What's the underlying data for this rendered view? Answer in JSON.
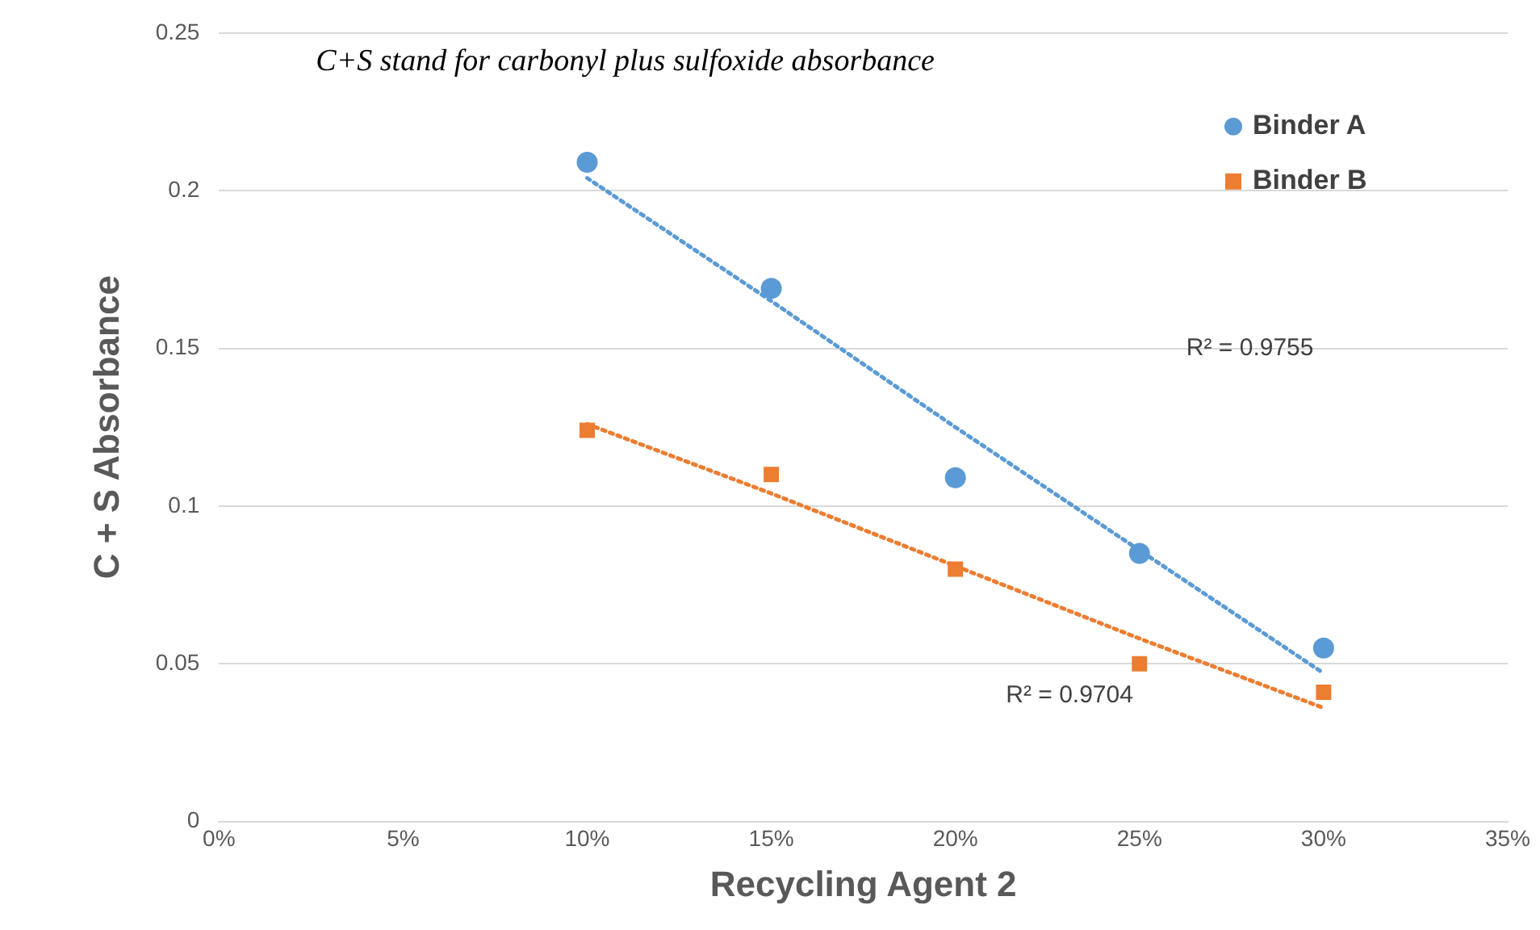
{
  "chart_data": {
    "type": "scatter",
    "xlabel": "Recycling Agent 2",
    "ylabel": "C + S Absorbance",
    "xlim": [
      0,
      35
    ],
    "xticks": [
      {
        "value": 0,
        "label": "0%"
      },
      {
        "value": 5,
        "label": "5%"
      },
      {
        "value": 10,
        "label": "10%"
      },
      {
        "value": 15,
        "label": "15%"
      },
      {
        "value": 20,
        "label": "20%"
      },
      {
        "value": 25,
        "label": "25%"
      },
      {
        "value": 30,
        "label": "30%"
      },
      {
        "value": 35,
        "label": "35%"
      }
    ],
    "ylim": [
      0,
      0.25
    ],
    "yticks": [
      0,
      0.05,
      0.1,
      0.15,
      0.2,
      0.25
    ],
    "grid": "y",
    "legend": "top right",
    "x": [
      10,
      15,
      20,
      25,
      30
    ],
    "series": [
      {
        "name": "Binder A",
        "color": "#5b9bd5",
        "marker": "circle",
        "values": [
          0.209,
          0.169,
          0.109,
          0.085,
          0.055
        ]
      },
      {
        "name": "Binder B",
        "color": "#ed7d31",
        "marker": "square",
        "values": [
          0.124,
          0.11,
          0.08,
          0.05,
          0.041
        ]
      },
      {
        "type": "line",
        "color": "#5b9bd5",
        "line_style": "dotted",
        "values": [
          0.204,
          0.165,
          0.125,
          0.086,
          0.047
        ]
      },
      {
        "type": "line",
        "color": "#ed7d31",
        "line_style": "dotted",
        "values": [
          0.126,
          0.104,
          0.081,
          0.058,
          0.036
        ]
      }
    ],
    "annotations": [
      "C+S stand for carbonyl plus sulfoxide absorbance",
      "R² = 0.9755",
      "R² = 0.9704"
    ]
  }
}
